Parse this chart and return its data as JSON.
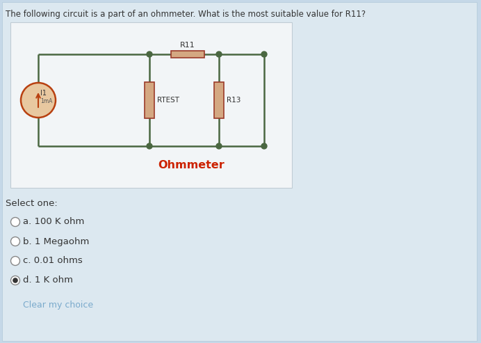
{
  "bg_color": "#c5d8e8",
  "panel_color": "#dce8f0",
  "circuit_bg": "#f2f5f7",
  "title": "The following circuit is a part of an ohmmeter. What is the most suitable value for R11?",
  "title_fontsize": 8.5,
  "circuit_label": "Ohmmeter",
  "circuit_label_color": "#cc2200",
  "wire_color": "#4a6741",
  "resistor_body_color": "#d4a882",
  "resistor_edge_color": "#9b3a2a",
  "ammeter_edge_color": "#b84010",
  "ammeter_fill_color": "#e8c8a0",
  "source_label": "I1",
  "source_sublabel": "1mA",
  "r11_label": "R11",
  "rtest_label": "RTEST",
  "r13_label": "R13",
  "select_one": "Select one:",
  "options": [
    {
      "letter": "a",
      "text": "100 K ohm",
      "selected": false
    },
    {
      "letter": "b",
      "text": "1 Megaohm",
      "selected": false
    },
    {
      "letter": "c",
      "text": "0.01 ohms",
      "selected": false
    },
    {
      "letter": "d",
      "text": "1 K ohm",
      "selected": true
    }
  ],
  "clear_text": "Clear my choice",
  "clear_color": "#7aaacc",
  "dot_color": "#4a6741",
  "panel_border_color": "#b0c8d8",
  "circuit_border_color": "#c0ccd4"
}
